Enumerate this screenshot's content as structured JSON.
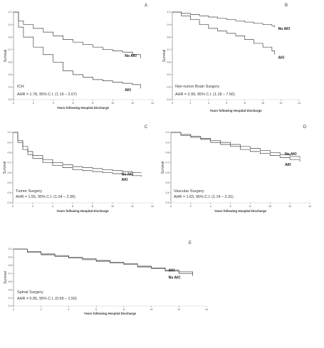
{
  "chart_data": [
    {
      "type": "line",
      "panel_letter": "A",
      "group_label": "ICH",
      "ahr": "AHR = 1.78, 95% C.I. (1.19 – 2.67)",
      "xlabel": "Years following Hospital Discharge",
      "ylabel": "Survival",
      "xlim": [
        0,
        14
      ],
      "ylim": [
        0.3,
        1.0
      ],
      "x_ticks": [
        0,
        2,
        4,
        6,
        8,
        10,
        12,
        14
      ],
      "y_ticks": [
        0.3,
        0.4,
        0.5,
        0.6,
        0.7,
        0.8,
        0.9,
        1.0
      ],
      "series": [
        {
          "name": "No AKI",
          "x": [
            0,
            0.5,
            1,
            2,
            3,
            4,
            5,
            6,
            7,
            8,
            9,
            10,
            11,
            12,
            12.8
          ],
          "y": [
            1.0,
            0.93,
            0.9,
            0.87,
            0.84,
            0.81,
            0.78,
            0.76,
            0.74,
            0.72,
            0.7,
            0.69,
            0.68,
            0.66,
            0.63
          ]
        },
        {
          "name": "AKI",
          "x": [
            0,
            0.5,
            1,
            2,
            3,
            4,
            5,
            6,
            7,
            8,
            9,
            10,
            11,
            12,
            12.8
          ],
          "y": [
            1.0,
            0.88,
            0.8,
            0.72,
            0.66,
            0.6,
            0.53,
            0.5,
            0.48,
            0.46,
            0.45,
            0.44,
            0.43,
            0.42,
            0.39
          ]
        }
      ]
    },
    {
      "type": "line",
      "panel_letter": "B",
      "group_label": "Non-tumor Brain Surgery",
      "ahr": "AHR = 2.99, 95% C.I. (1.18 – 7.56)",
      "xlabel": "Years following Hospital Discharge",
      "ylabel": "Survival",
      "xlim": [
        0,
        14
      ],
      "ylim": [
        0.3,
        1.0
      ],
      "x_ticks": [
        0,
        2,
        4,
        6,
        8,
        10,
        12,
        14
      ],
      "y_ticks": [
        0.3,
        0.4,
        0.5,
        0.6,
        0.7,
        0.8,
        0.9,
        1.0
      ],
      "series": [
        {
          "name": "No AKI",
          "x": [
            0,
            1,
            2,
            3,
            4,
            5,
            6,
            7,
            8,
            9,
            10,
            11,
            11.3
          ],
          "y": [
            1.0,
            0.99,
            0.98,
            0.97,
            0.96,
            0.95,
            0.94,
            0.93,
            0.92,
            0.91,
            0.9,
            0.89,
            0.88
          ]
        },
        {
          "name": "AKI",
          "x": [
            0,
            1,
            2,
            3,
            4,
            5,
            6,
            7,
            8,
            9,
            10,
            11,
            11.3
          ],
          "y": [
            1.0,
            0.97,
            0.94,
            0.9,
            0.87,
            0.85,
            0.83,
            0.81,
            0.78,
            0.75,
            0.72,
            0.69,
            0.66
          ]
        }
      ]
    },
    {
      "type": "line",
      "panel_letter": "C",
      "group_label": "Tumor Surgery",
      "ahr": "AHR = 1.55, 95% C.I. (1.04 – 2.36)",
      "xlabel": "Years following Hospital Discharge",
      "ylabel": "Survival",
      "xlim": [
        0,
        14
      ],
      "ylim": [
        0.3,
        1.0
      ],
      "x_ticks": [
        0,
        2,
        4,
        6,
        8,
        10,
        12,
        14
      ],
      "y_ticks": [
        0.3,
        0.4,
        0.5,
        0.6,
        0.7,
        0.8,
        0.9,
        1.0
      ],
      "series": [
        {
          "name": "No AKI",
          "x": [
            0,
            0.5,
            1,
            1.5,
            2,
            3,
            4,
            5,
            6,
            7,
            8,
            9,
            10,
            11,
            12,
            12.9
          ],
          "y": [
            1.0,
            0.92,
            0.86,
            0.81,
            0.77,
            0.73,
            0.7,
            0.68,
            0.66,
            0.65,
            0.64,
            0.63,
            0.62,
            0.61,
            0.6,
            0.6
          ]
        },
        {
          "name": "AKI",
          "x": [
            0,
            0.5,
            1,
            1.5,
            2,
            3,
            4,
            5,
            6,
            7,
            8,
            9,
            10,
            11,
            12,
            12.9
          ],
          "y": [
            1.0,
            0.9,
            0.83,
            0.78,
            0.74,
            0.7,
            0.67,
            0.65,
            0.63,
            0.62,
            0.61,
            0.6,
            0.59,
            0.58,
            0.57,
            0.56
          ]
        }
      ]
    },
    {
      "type": "line",
      "panel_letter": "D",
      "group_label": "Vascular Surgery",
      "ahr": "AHR = 1.63, 95% C.I. (1.14 – 2.31)",
      "xlabel": "Years following Hospital Discharge",
      "ylabel": "Survival",
      "xlim": [
        0,
        14
      ],
      "ylim": [
        0.3,
        1.0
      ],
      "x_ticks": [
        0,
        2,
        4,
        6,
        8,
        10,
        12,
        14
      ],
      "y_ticks": [
        0.3,
        0.4,
        0.5,
        0.6,
        0.7,
        0.8,
        0.9,
        1.0
      ],
      "series": [
        {
          "name": "No AKI",
          "x": [
            0,
            1,
            2,
            3,
            4,
            5,
            6,
            7,
            8,
            9,
            10,
            11,
            12,
            13
          ],
          "y": [
            1.0,
            0.98,
            0.96,
            0.94,
            0.92,
            0.9,
            0.88,
            0.86,
            0.84,
            0.82,
            0.8,
            0.78,
            0.76,
            0.74
          ]
        },
        {
          "name": "AKI",
          "x": [
            0,
            1,
            2,
            3,
            4,
            5,
            6,
            7,
            8,
            9,
            10,
            11,
            12,
            13
          ],
          "y": [
            1.0,
            0.97,
            0.95,
            0.93,
            0.9,
            0.88,
            0.86,
            0.83,
            0.81,
            0.79,
            0.77,
            0.75,
            0.73,
            0.71
          ]
        }
      ]
    },
    {
      "type": "line",
      "panel_letter": "E",
      "group_label": "Spinal Surgery",
      "ahr": "AHR = 0.95, 95% C.I. (0.59 – 1.50)",
      "xlabel": "Years following Hospital Discharge",
      "ylabel": "Survival",
      "xlim": [
        0,
        14
      ],
      "ylim": [
        0.3,
        1.0
      ],
      "x_ticks": [
        0,
        2,
        4,
        6,
        8,
        10,
        12,
        14
      ],
      "y_ticks": [
        0.3,
        0.4,
        0.5,
        0.6,
        0.7,
        0.8,
        0.9,
        1.0
      ],
      "series": [
        {
          "name": "AKI",
          "x": [
            0,
            1,
            2,
            3,
            4,
            5,
            6,
            7,
            8,
            9,
            10,
            11,
            12,
            13
          ],
          "y": [
            1.0,
            0.97,
            0.94,
            0.92,
            0.9,
            0.88,
            0.86,
            0.84,
            0.82,
            0.79,
            0.77,
            0.74,
            0.72,
            0.7
          ]
        },
        {
          "name": "No AKI",
          "x": [
            0,
            1,
            2,
            3,
            4,
            5,
            6,
            7,
            8,
            9,
            10,
            11,
            12,
            13
          ],
          "y": [
            1.0,
            0.96,
            0.93,
            0.91,
            0.89,
            0.87,
            0.85,
            0.83,
            0.81,
            0.78,
            0.76,
            0.73,
            0.7,
            0.67
          ]
        }
      ]
    }
  ]
}
